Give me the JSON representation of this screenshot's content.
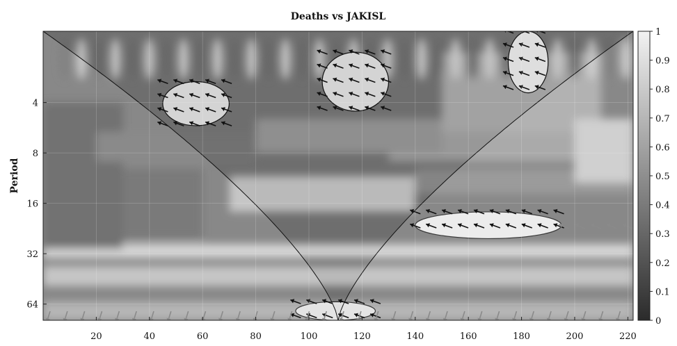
{
  "chart_data": {
    "type": "heatmap",
    "subtype": "wavelet-coherence",
    "title": "Deaths vs JAKISL",
    "xlabel": "",
    "ylabel": "Period",
    "xlim": [
      0,
      222
    ],
    "x_ticks": [
      20,
      40,
      60,
      80,
      100,
      120,
      140,
      160,
      180,
      200,
      220
    ],
    "y_scale": "log2",
    "ylim": [
      1.5,
      80
    ],
    "y_ticks": [
      4,
      8,
      16,
      32,
      64
    ],
    "colorbar": {
      "min": 0,
      "max": 1,
      "ticks": [
        0,
        0.1,
        0.2,
        0.3,
        0.4,
        0.5,
        0.6,
        0.7,
        0.8,
        0.9,
        1
      ],
      "colormap": "grayscale",
      "low_color": "#2b2b2b",
      "high_color": "#f2f2f2"
    },
    "cone_of_influence": {
      "apex_x": 111,
      "apex_period": 80,
      "edge_period_at_x0": 1.5
    },
    "significant_regions": [
      {
        "x_range": [
          140,
          195
        ],
        "period_range": [
          18,
          26
        ],
        "coherence": 0.95
      },
      {
        "x_range": [
          95,
          125
        ],
        "period_range": [
          62,
          80
        ],
        "coherence": 0.9
      },
      {
        "x_range": [
          45,
          70
        ],
        "period_range": [
          3,
          5.5
        ],
        "coherence": 0.85
      },
      {
        "x_range": [
          105,
          130
        ],
        "period_range": [
          2,
          4.5
        ],
        "coherence": 0.85
      },
      {
        "x_range": [
          175,
          190
        ],
        "period_range": [
          1.5,
          3.5
        ],
        "coherence": 0.9
      }
    ]
  },
  "colors": {
    "frame": "#222222",
    "arrow_inside": "#111111",
    "arrow_outside": "#8a8a8a",
    "cone": "#111111"
  }
}
